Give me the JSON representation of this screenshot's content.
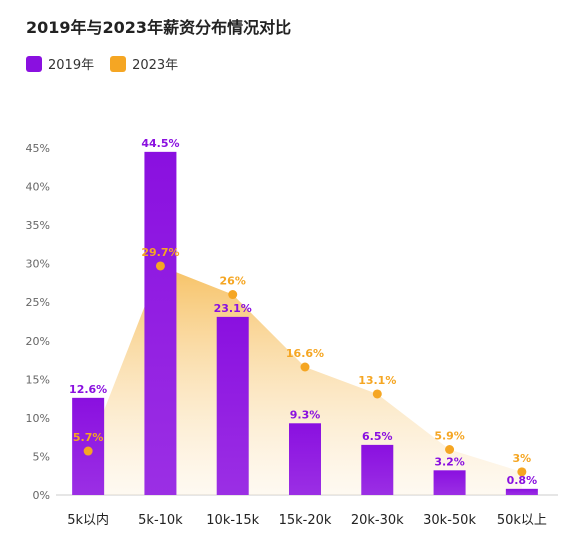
{
  "chart_data": {
    "type": "bar",
    "title": "2019年与2023年薪资分布情况对比",
    "categories": [
      "5k以内",
      "5k-10k",
      "10k-15k",
      "15k-20k",
      "20k-30k",
      "30k-50k",
      "50k以上"
    ],
    "series": [
      {
        "name": "2019年",
        "type": "bar",
        "color": "#8A10E0",
        "values": [
          12.6,
          44.5,
          23.1,
          9.3,
          6.5,
          3.2,
          0.8
        ],
        "labels": [
          "12.6%",
          "44.5%",
          "23.1%",
          "9.3%",
          "6.5%",
          "3.2%",
          "0.8%"
        ]
      },
      {
        "name": "2023年",
        "type": "area",
        "color": "#F5A623",
        "values": [
          5.7,
          29.7,
          26,
          16.6,
          13.1,
          5.9,
          3
        ],
        "labels": [
          "5.7%",
          "29.7%",
          "26%",
          "16.6%",
          "13.1%",
          "5.9%",
          "3%"
        ]
      }
    ],
    "ylim": [
      0,
      45
    ],
    "yticks": [
      "0%",
      "5%",
      "10%",
      "15%",
      "20%",
      "25%",
      "30%",
      "35%",
      "40%",
      "45%"
    ],
    "grid": false,
    "legend_position": "top-left"
  }
}
